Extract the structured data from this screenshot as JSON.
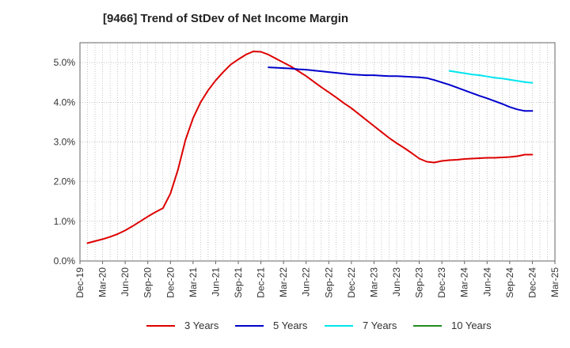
{
  "chart_data": {
    "type": "line",
    "title": "[9466]  Trend of StDev of Net Income Margin",
    "xlabel": "",
    "ylabel": "",
    "ylim": [
      0,
      5.5
    ],
    "y_ticks": [
      0,
      1,
      2,
      3,
      4,
      5
    ],
    "y_tick_labels": [
      "0.0%",
      "1.0%",
      "2.0%",
      "3.0%",
      "4.0%",
      "5.0%"
    ],
    "x_tick_labels": [
      "Dec-19",
      "Mar-20",
      "Jun-20",
      "Sep-20",
      "Dec-20",
      "Mar-21",
      "Jun-21",
      "Sep-21",
      "Dec-21",
      "Mar-22",
      "Jun-22",
      "Sep-22",
      "Dec-22",
      "Mar-23",
      "Jun-23",
      "Sep-23",
      "Dec-23",
      "Mar-24",
      "Jun-24",
      "Sep-24",
      "Dec-24",
      "Mar-25"
    ],
    "grid": true,
    "legend_position": "bottom",
    "series": [
      {
        "name": "3 Years",
        "color": "#dd0000",
        "x": [
          "Jan-20",
          "Feb-20",
          "Mar-20",
          "Apr-20",
          "May-20",
          "Jun-20",
          "Jul-20",
          "Aug-20",
          "Sep-20",
          "Oct-20",
          "Nov-20",
          "Dec-20",
          "Jan-21",
          "Feb-21",
          "Mar-21",
          "Apr-21",
          "May-21",
          "Jun-21",
          "Jul-21",
          "Aug-21",
          "Sep-21",
          "Oct-21",
          "Nov-21",
          "Dec-21",
          "Jan-22",
          "Feb-22",
          "Mar-22",
          "Apr-22",
          "May-22",
          "Jun-22",
          "Jul-22",
          "Aug-22",
          "Sep-22",
          "Oct-22",
          "Nov-22",
          "Dec-22",
          "Jan-23",
          "Feb-23",
          "Mar-23",
          "Apr-23",
          "May-23",
          "Jun-23",
          "Jul-23",
          "Aug-23",
          "Sep-23",
          "Oct-23",
          "Nov-23",
          "Dec-23",
          "Jan-24",
          "Feb-24",
          "Mar-24",
          "Apr-24",
          "May-24",
          "Jun-24",
          "Jul-24",
          "Aug-24",
          "Sep-24",
          "Oct-24",
          "Nov-24",
          "Dec-24"
        ],
        "values": [
          0.45,
          0.5,
          0.55,
          0.61,
          0.68,
          0.77,
          0.88,
          1.0,
          1.12,
          1.23,
          1.33,
          1.7,
          2.3,
          3.05,
          3.6,
          4.0,
          4.3,
          4.55,
          4.76,
          4.95,
          5.08,
          5.2,
          5.28,
          5.27,
          5.2,
          5.1,
          5.0,
          4.9,
          4.78,
          4.66,
          4.52,
          4.38,
          4.25,
          4.12,
          3.98,
          3.85,
          3.7,
          3.55,
          3.4,
          3.25,
          3.1,
          2.97,
          2.85,
          2.72,
          2.58,
          2.5,
          2.48,
          2.52,
          2.54,
          2.55,
          2.57,
          2.58,
          2.59,
          2.6,
          2.6,
          2.61,
          2.62,
          2.64,
          2.68,
          2.68
        ]
      },
      {
        "name": "5 Years",
        "color": "#0000cc",
        "x": [
          "Jan-22",
          "Feb-22",
          "Mar-22",
          "Apr-22",
          "May-22",
          "Jun-22",
          "Jul-22",
          "Aug-22",
          "Sep-22",
          "Oct-22",
          "Nov-22",
          "Dec-22",
          "Jan-23",
          "Feb-23",
          "Mar-23",
          "Apr-23",
          "May-23",
          "Jun-23",
          "Jul-23",
          "Aug-23",
          "Sep-23",
          "Oct-23",
          "Nov-23",
          "Dec-23",
          "Jan-24",
          "Feb-24",
          "Mar-24",
          "Apr-24",
          "May-24",
          "Jun-24",
          "Jul-24",
          "Aug-24",
          "Sep-24",
          "Oct-24",
          "Nov-24",
          "Dec-24"
        ],
        "values": [
          4.88,
          4.87,
          4.86,
          4.85,
          4.83,
          4.82,
          4.8,
          4.78,
          4.76,
          4.74,
          4.72,
          4.7,
          4.69,
          4.68,
          4.68,
          4.67,
          4.66,
          4.66,
          4.65,
          4.64,
          4.63,
          4.61,
          4.56,
          4.5,
          4.44,
          4.37,
          4.3,
          4.23,
          4.16,
          4.1,
          4.03,
          3.96,
          3.88,
          3.82,
          3.78,
          3.78
        ]
      },
      {
        "name": "7 Years",
        "color": "#00e5ee",
        "x": [
          "Jan-24",
          "Feb-24",
          "Mar-24",
          "Apr-24",
          "May-24",
          "Jun-24",
          "Jul-24",
          "Aug-24",
          "Sep-24",
          "Oct-24",
          "Nov-24",
          "Dec-24"
        ],
        "values": [
          4.79,
          4.76,
          4.73,
          4.7,
          4.68,
          4.65,
          4.62,
          4.6,
          4.57,
          4.54,
          4.51,
          4.49
        ]
      },
      {
        "name": "10 Years",
        "color": "#228b22",
        "x": [],
        "values": []
      }
    ]
  }
}
